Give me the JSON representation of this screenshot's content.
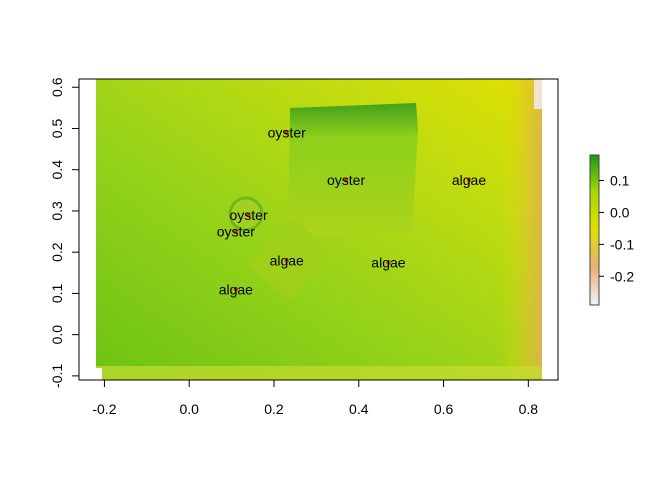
{
  "chart_data": {
    "type": "heatmap",
    "title": "",
    "xlabel": "",
    "ylabel": "",
    "xlim": [
      -0.26,
      0.87
    ],
    "ylim": [
      -0.11,
      0.62
    ],
    "x_ticks": [
      -0.2,
      0.0,
      0.2,
      0.4,
      0.6,
      0.8
    ],
    "x_tick_labels": [
      "-0.2",
      "0.0",
      "0.2",
      "0.4",
      "0.6",
      "0.8"
    ],
    "y_ticks": [
      -0.1,
      0.0,
      0.1,
      0.2,
      0.3,
      0.4,
      0.5,
      0.6
    ],
    "y_tick_labels": [
      "-0.1",
      "0.0",
      "0.1",
      "0.2",
      "0.3",
      "0.4",
      "0.5",
      "0.6"
    ],
    "colorbar": {
      "min": -0.29,
      "max": 0.18,
      "ticks": [
        0.1,
        0.0,
        -0.1,
        -0.2
      ],
      "tick_labels": [
        "0.1",
        "0.0",
        "-0.1",
        "-0.2"
      ],
      "colors": [
        "#f2f2f2",
        "#e8b078",
        "#e0e000",
        "#a8d800",
        "#1a9a1a"
      ]
    },
    "points": [
      {
        "label": "oyster",
        "x": 0.23,
        "y": 0.49
      },
      {
        "label": "oyster",
        "x": 0.37,
        "y": 0.375
      },
      {
        "label": "oyster",
        "x": 0.14,
        "y": 0.29
      },
      {
        "label": "oyster",
        "x": 0.11,
        "y": 0.25
      },
      {
        "label": "algae",
        "x": 0.66,
        "y": 0.375
      },
      {
        "label": "algae",
        "x": 0.23,
        "y": 0.18
      },
      {
        "label": "algae",
        "x": 0.47,
        "y": 0.175
      },
      {
        "label": "algae",
        "x": 0.11,
        "y": 0.11
      }
    ],
    "point_color": "#d23a1e"
  }
}
